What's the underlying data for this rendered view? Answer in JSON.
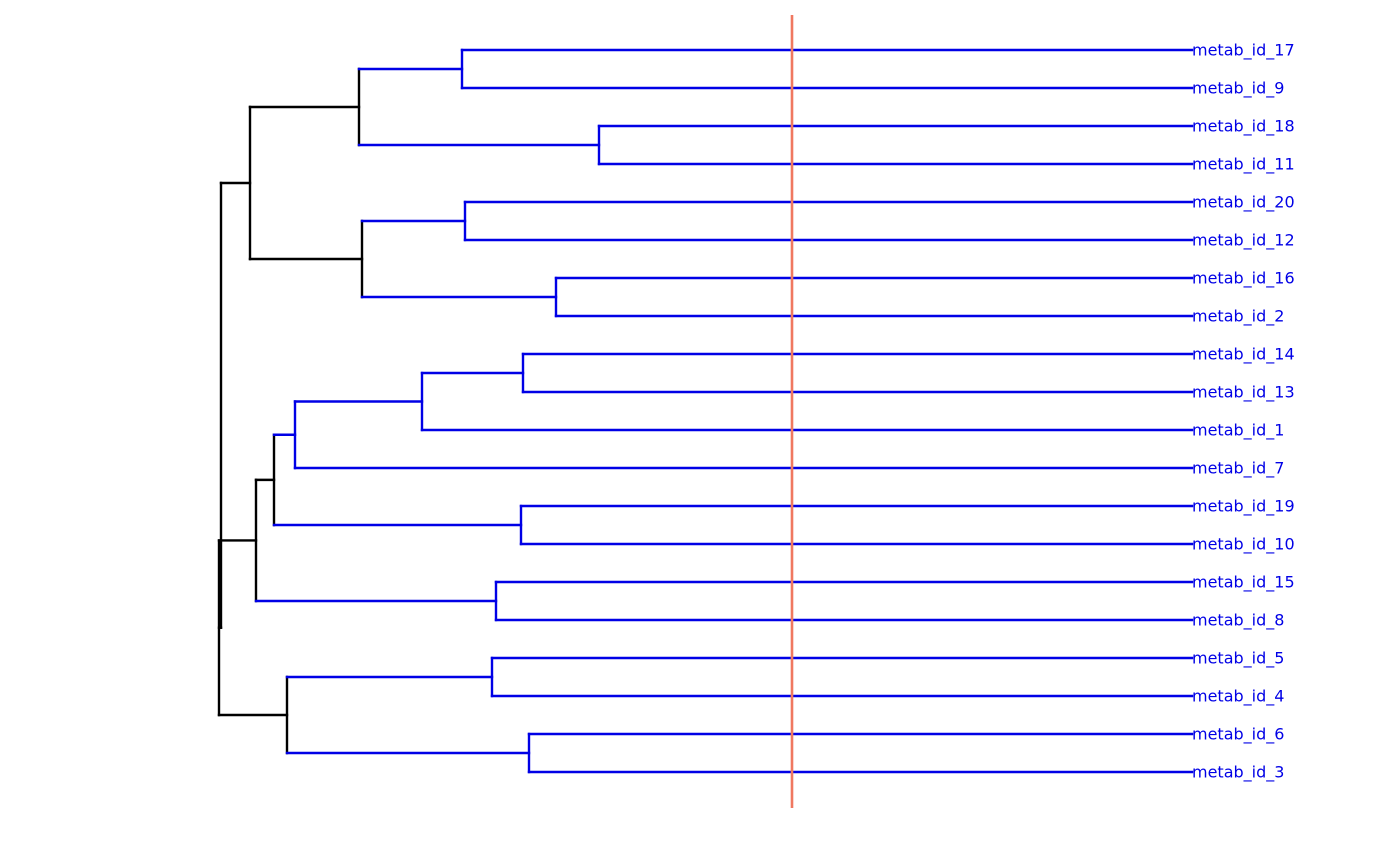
{
  "colors": {
    "cluster_branch": "#0000e6",
    "trunk_branch": "#000000",
    "cut_line": "#f07860",
    "label_text": "#0000e6",
    "background": "#ffffff"
  },
  "leaves": [
    "metab_id_17",
    "metab_id_9",
    "metab_id_18",
    "metab_id_11",
    "metab_id_20",
    "metab_id_12",
    "metab_id_16",
    "metab_id_2",
    "metab_id_14",
    "metab_id_13",
    "metab_id_1",
    "metab_id_7",
    "metab_id_19",
    "metab_id_10",
    "metab_id_15",
    "metab_id_8",
    "metab_id_5",
    "metab_id_4",
    "metab_id_6",
    "metab_id_3"
  ],
  "tree": {
    "h": 0.971,
    "children": [
      {
        "h": 0.942,
        "children": [
          {
            "h": 0.833,
            "children": [
              {
                "h": 0.73,
                "color": "cluster",
                "children": [
                  {
                    "leaf": 0
                  },
                  {
                    "leaf": 1
                  }
                ]
              },
              {
                "h": 0.593,
                "color": "cluster",
                "children": [
                  {
                    "leaf": 2
                  },
                  {
                    "leaf": 3
                  }
                ]
              }
            ]
          },
          {
            "h": 0.83,
            "children": [
              {
                "h": 0.727,
                "color": "cluster",
                "children": [
                  {
                    "leaf": 4
                  },
                  {
                    "leaf": 5
                  }
                ]
              },
              {
                "h": 0.636,
                "color": "cluster",
                "children": [
                  {
                    "leaf": 6
                  },
                  {
                    "leaf": 7
                  }
                ]
              }
            ]
          }
        ]
      },
      {
        "h": 0.973,
        "children": [
          {
            "h": 0.936,
            "children": [
              {
                "h": 0.918,
                "children": [
                  {
                    "h": 0.897,
                    "color": "cluster",
                    "children": [
                      {
                        "h": 0.77,
                        "color": "cluster",
                        "children": [
                          {
                            "h": 0.669,
                            "color": "cluster",
                            "children": [
                              {
                                "leaf": 8
                              },
                              {
                                "leaf": 9
                              }
                            ]
                          },
                          {
                            "leaf": 10
                          }
                        ]
                      },
                      {
                        "leaf": 11
                      }
                    ]
                  },
                  {
                    "h": 0.671,
                    "color": "cluster",
                    "children": [
                      {
                        "leaf": 12
                      },
                      {
                        "leaf": 13
                      }
                    ]
                  }
                ]
              },
              {
                "h": 0.696,
                "color": "cluster",
                "children": [
                  {
                    "leaf": 14
                  },
                  {
                    "leaf": 15
                  }
                ]
              }
            ]
          },
          {
            "h": 0.905,
            "children": [
              {
                "h": 0.7,
                "color": "cluster",
                "children": [
                  {
                    "leaf": 16
                  },
                  {
                    "leaf": 17
                  }
                ]
              },
              {
                "h": 0.663,
                "color": "cluster",
                "children": [
                  {
                    "leaf": 18
                  },
                  {
                    "leaf": 19
                  }
                ]
              }
            ]
          }
        ]
      }
    ]
  },
  "cut_height": 0.4
}
